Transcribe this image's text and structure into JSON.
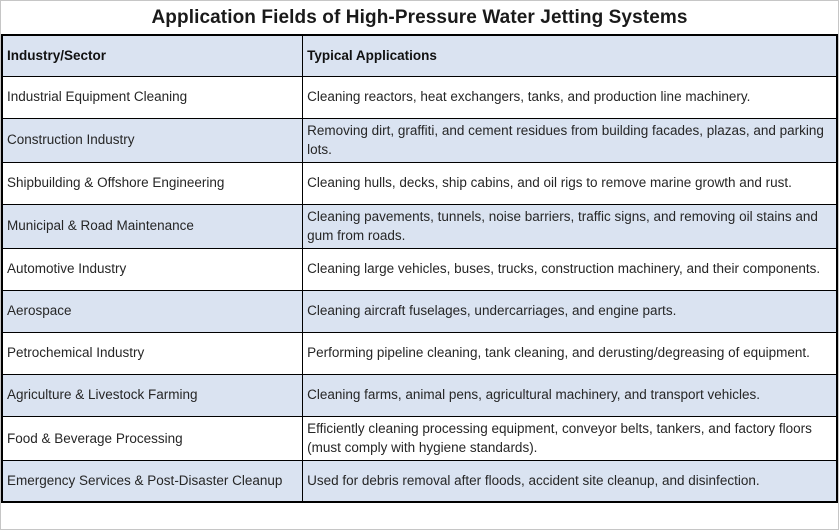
{
  "title": "Application Fields of High-Pressure Water Jetting Systems",
  "table": {
    "headers": [
      "Industry/Sector",
      "Typical Applications"
    ],
    "rows": [
      {
        "sector": "Industrial Equipment Cleaning",
        "applications": "Cleaning reactors, heat exchangers, tanks, and production line machinery."
      },
      {
        "sector": "Construction Industry",
        "applications": "Removing dirt, graffiti, and cement residues from building facades, plazas, and parking lots."
      },
      {
        "sector": "Shipbuilding & Offshore Engineering",
        "applications": "Cleaning hulls, decks, ship cabins, and oil rigs to remove marine growth and rust."
      },
      {
        "sector": "Municipal & Road Maintenance",
        "applications": "Cleaning pavements, tunnels, noise barriers, traffic signs, and removing oil stains and gum from roads."
      },
      {
        "sector": "Automotive Industry",
        "applications": "Cleaning large vehicles, buses, trucks, construction machinery, and their components."
      },
      {
        "sector": "Aerospace",
        "applications": "Cleaning aircraft fuselages, undercarriages, and engine parts."
      },
      {
        "sector": "Petrochemical Industry",
        "applications": "Performing pipeline cleaning, tank cleaning, and derusting/degreasing of equipment."
      },
      {
        "sector": "Agriculture & Livestock Farming",
        "applications": "Cleaning farms, animal pens, agricultural machinery, and transport vehicles."
      },
      {
        "sector": "Food & Beverage Processing",
        "applications": "Efficiently cleaning processing equipment, conveyor belts, tankers, and factory floors (must comply with hygiene standards)."
      },
      {
        "sector": "Emergency Services & Post-Disaster Cleanup",
        "applications": "Used for debris removal after floods, accident site cleanup, and disinfection."
      }
    ]
  },
  "colors": {
    "header_bg": "#dae3f1",
    "alt_row_bg": "#dae3f1",
    "table_border": "#000000",
    "page_border": "#c6c6c6",
    "title_text": "#1a1a1a",
    "body_text": "#262626"
  }
}
